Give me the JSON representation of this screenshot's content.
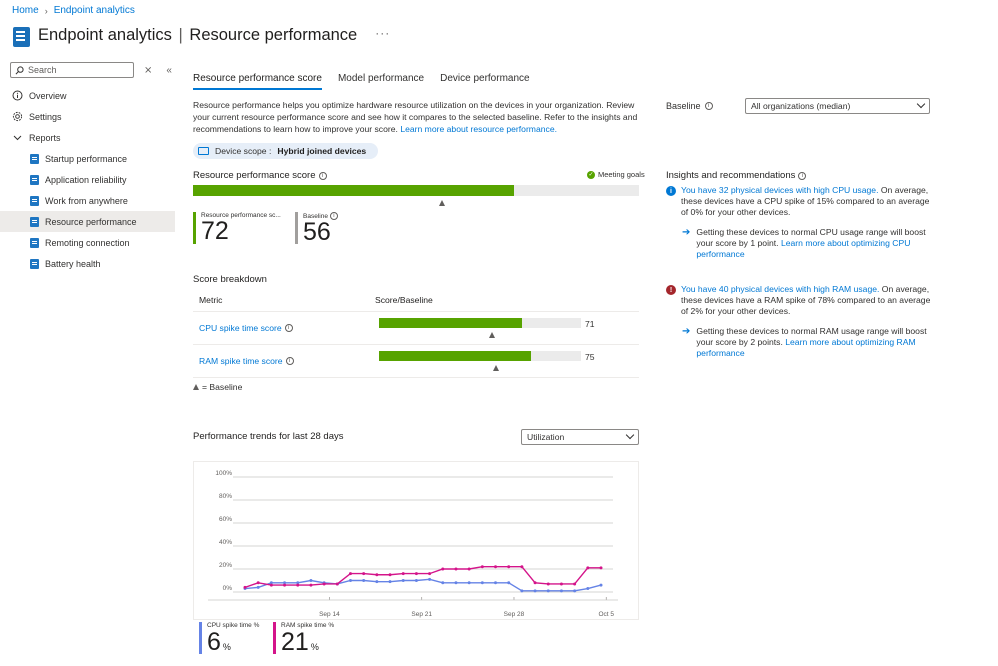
{
  "breadcrumb": {
    "home": "Home",
    "current": "Endpoint analytics"
  },
  "header": {
    "title_main": "Endpoint analytics",
    "separator": "|",
    "title_sub": "Resource performance",
    "more": "···"
  },
  "sidebar": {
    "search_placeholder": "Search",
    "items": [
      {
        "label": "Overview",
        "icon": "overview-icon"
      },
      {
        "label": "Settings",
        "icon": "gear-icon"
      },
      {
        "label": "Reports",
        "icon": "chevron-down-icon"
      }
    ],
    "children": [
      {
        "label": "Startup performance"
      },
      {
        "label": "Application reliability"
      },
      {
        "label": "Work from anywhere"
      },
      {
        "label": "Resource performance",
        "active": true
      },
      {
        "label": "Remoting connection"
      },
      {
        "label": "Battery health"
      }
    ]
  },
  "tabs": [
    "Resource performance score",
    "Model performance",
    "Device performance"
  ],
  "description": {
    "text": "Resource performance helps you optimize hardware resource utilization on the devices in your organization. Review your current resource performance score and see how it compares to the selected baseline. Refer to the insights and recommendations to learn how to improve your score.",
    "link": "Learn more about resource performance."
  },
  "scope": {
    "label": "Device scope :",
    "value": "Hybrid joined devices"
  },
  "score": {
    "title": "Resource performance score",
    "meeting_goals": "Meeting goals",
    "value": 72,
    "baseline": 56,
    "score_label": "Resource performance sc...",
    "baseline_label": "Baseline",
    "score_value": "72",
    "baseline_value": "56"
  },
  "breakdown": {
    "title": "Score breakdown",
    "col_metric": "Metric",
    "col_score": "Score/Baseline",
    "rows": [
      {
        "metric": "CPU spike time score",
        "score": 71,
        "score_text": "71",
        "baseline": 56
      },
      {
        "metric": "RAM spike time score",
        "score": 75,
        "score_text": "75",
        "baseline": 58
      }
    ],
    "legend": "= Baseline"
  },
  "trends": {
    "title": "Performance trends for last 28 days",
    "dropdown": "Utilization"
  },
  "baseline_select": {
    "label": "Baseline",
    "value": "All organizations (median)"
  },
  "insights": {
    "title": "Insights and recommendations",
    "items": [
      {
        "link": "You have 32 physical devices with high CPU usage.",
        "text": " On average, these devices have a CPU spike of 15% compared to an average of 0% for your other devices.",
        "rec_text": "Getting these devices to normal CPU usage range will boost your score by 1 point. ",
        "rec_link": "Learn more about optimizing CPU performance",
        "icon_color": "#0078d4"
      },
      {
        "link": "You have 40 physical devices with high RAM usage.",
        "text": " On average, these devices have a RAM spike of 78% compared to an average of 2% for your other devices.",
        "rec_text": "Getting these devices to normal RAM usage range will boost your score by 2 points. ",
        "rec_link": "Learn more about optimizing RAM performance",
        "icon_color": "#a4262c"
      }
    ]
  },
  "kpis": [
    {
      "label": "CPU spike time %",
      "value": "6",
      "unit": "%",
      "color": "#6583e6"
    },
    {
      "label": "RAM spike time %",
      "value": "21",
      "unit": "%",
      "color": "#d4148a"
    }
  ],
  "chart_data": {
    "type": "line",
    "yticks": [
      "100%",
      "80%",
      "60%",
      "40%",
      "20%",
      "0%"
    ],
    "xticks": [
      "Sep 14",
      "Sep 21",
      "Sep 28",
      "Oct 5"
    ],
    "ylim": [
      0,
      100
    ],
    "series": [
      {
        "name": "CPU spike time %",
        "color": "#6583e6",
        "values": [
          3,
          4,
          8,
          8,
          8,
          10,
          8,
          7,
          10,
          10,
          9,
          9,
          10,
          10,
          11,
          8,
          8,
          8,
          8,
          8,
          8,
          1,
          1,
          1,
          1,
          1,
          3,
          6
        ]
      },
      {
        "name": "RAM spike time %",
        "color": "#d4148a",
        "values": [
          4,
          8,
          6,
          6,
          6,
          6,
          7,
          7,
          16,
          16,
          15,
          15,
          16,
          16,
          16,
          20,
          20,
          20,
          22,
          22,
          22,
          22,
          8,
          7,
          7,
          7,
          21,
          21
        ]
      }
    ]
  }
}
